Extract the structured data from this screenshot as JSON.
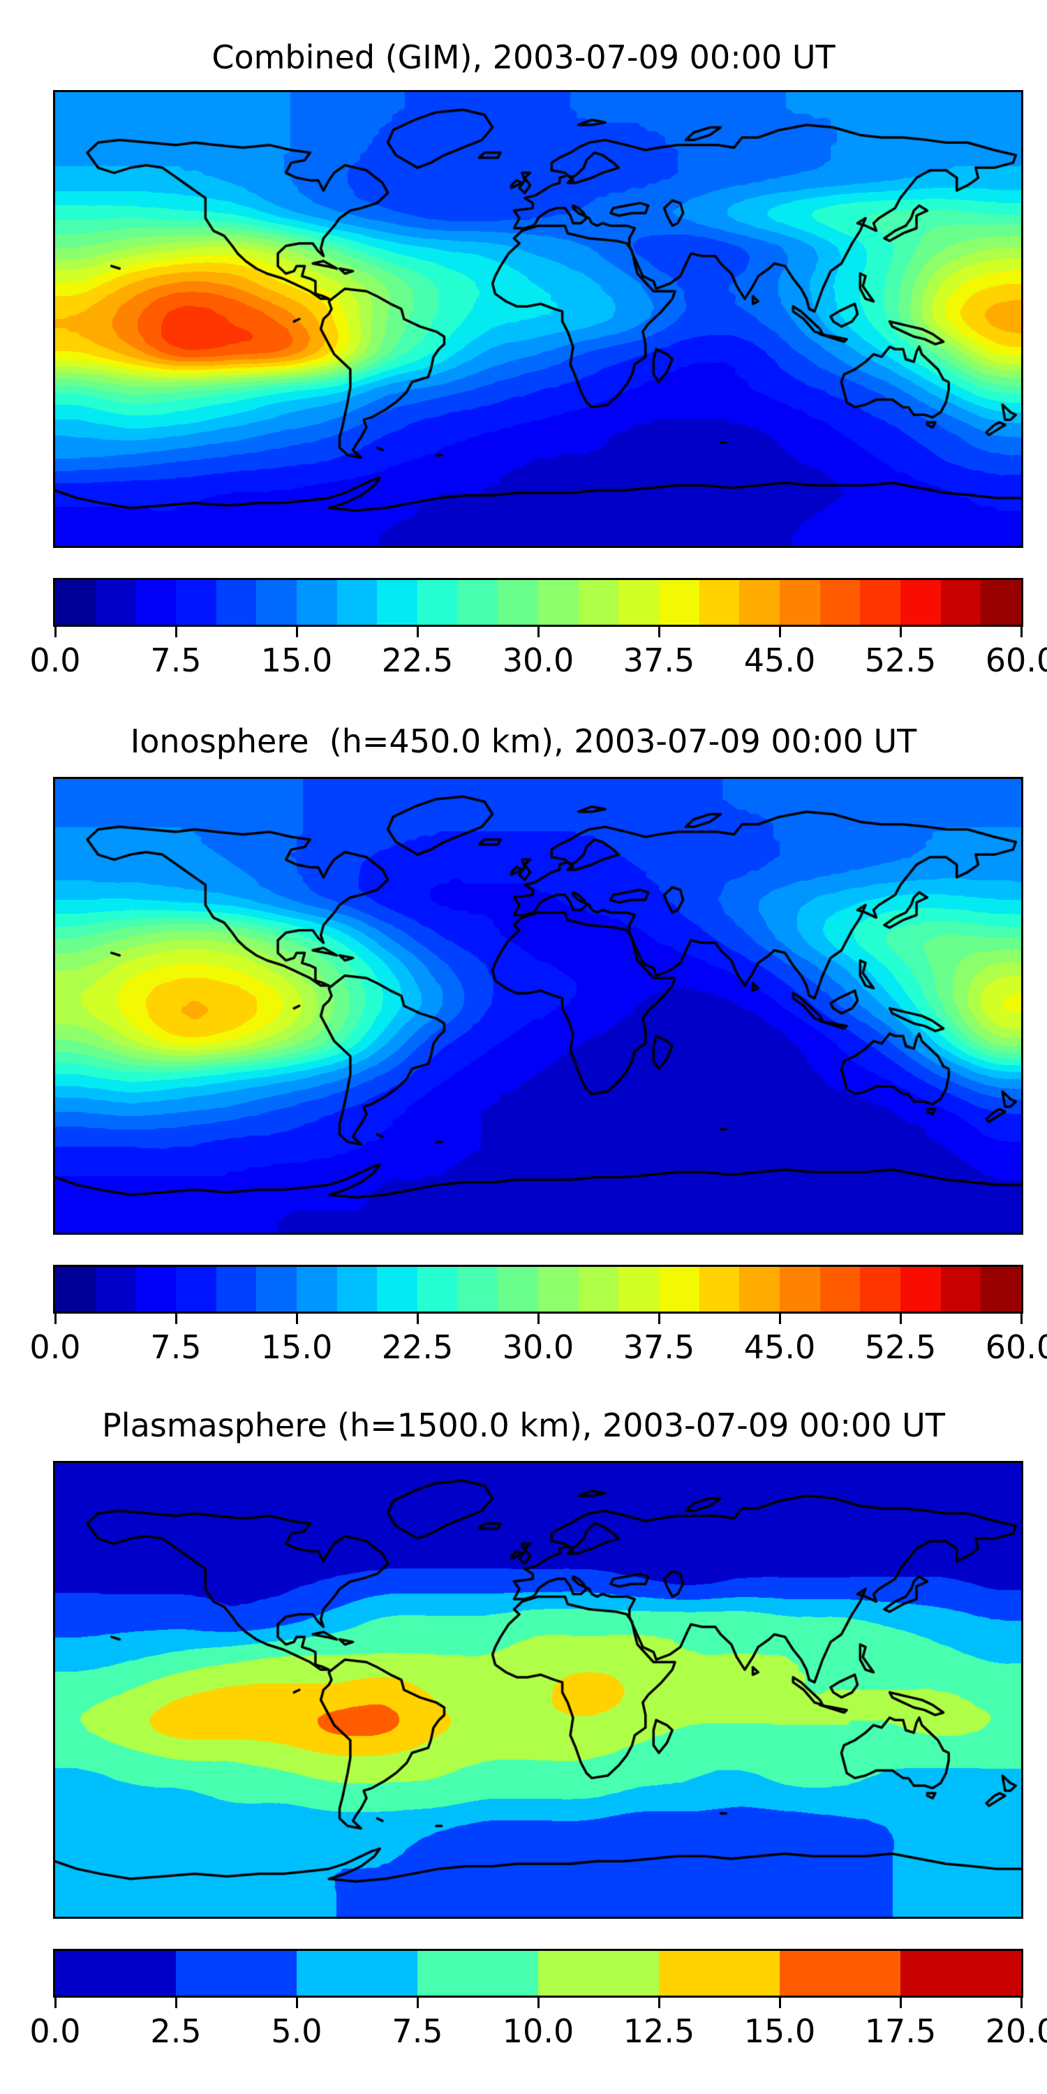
{
  "figure": {
    "background_color": "#ffffff",
    "description": "Three stacked global maps of total electron content with jet colormap contour fills, black coastlines and horizontal discrete colorbars",
    "coastline_color": "#000000",
    "panel_count": 3
  },
  "chart_data": [
    {
      "type": "heatmap",
      "title": "Combined (GIM), 2003-07-09 00:00 UT",
      "projection": "equirectangular",
      "colormap": "jet",
      "levels": {
        "min": 0,
        "max": 60,
        "step": 2.5,
        "n_colors": 24
      },
      "colorbar": {
        "orientation": "horizontal",
        "tick_values": [
          0.0,
          7.5,
          15.0,
          22.5,
          30.0,
          37.5,
          45.0,
          52.5,
          60.0
        ],
        "tick_labels": [
          "0.0",
          "7.5",
          "15.0",
          "22.5",
          "30.0",
          "37.5",
          "45.0",
          "52.5",
          "60.0"
        ]
      },
      "grid": {
        "lons": [
          -180,
          -160,
          -140,
          -120,
          -100,
          -80,
          -60,
          -40,
          -20,
          0,
          20,
          40,
          60,
          80,
          100,
          120,
          140,
          160,
          180
        ],
        "lats": [
          90,
          75,
          60,
          45,
          30,
          15,
          0,
          -15,
          -30,
          -45,
          -60,
          -75,
          -90
        ],
        "values": [
          [
            16,
            16,
            16,
            15,
            15,
            14,
            13,
            12,
            12,
            12,
            13,
            13,
            14,
            14,
            15,
            15,
            16,
            16,
            16
          ],
          [
            17,
            17,
            17,
            16,
            15,
            14,
            12,
            11,
            11,
            11,
            12,
            12,
            13,
            14,
            14,
            15,
            16,
            17,
            17
          ],
          [
            18,
            18,
            18,
            17,
            15,
            13,
            11,
            11,
            11,
            11,
            12,
            12,
            13,
            14,
            15,
            16,
            17,
            18,
            18
          ],
          [
            24,
            24,
            23,
            22,
            18,
            15,
            13,
            11,
            11,
            12,
            13,
            14,
            16,
            19,
            22,
            25,
            26,
            26,
            25
          ],
          [
            30,
            33,
            35,
            36,
            33,
            27,
            22,
            20,
            19,
            17,
            15,
            12,
            10,
            12,
            15,
            20,
            25,
            30,
            33
          ],
          [
            38,
            43,
            46,
            45,
            40,
            36,
            30,
            25,
            22,
            20,
            18,
            15,
            12,
            13,
            16,
            21,
            26,
            36,
            40
          ],
          [
            43,
            47,
            52,
            50,
            47,
            40,
            30,
            25,
            21,
            20,
            19,
            16,
            12,
            12,
            15,
            20,
            26,
            38,
            44
          ],
          [
            40,
            44,
            50,
            49,
            48,
            40,
            28,
            22,
            17,
            15,
            12,
            10,
            8,
            8,
            12,
            16,
            21,
            29,
            38
          ],
          [
            26,
            29,
            28,
            26,
            23,
            21,
            16,
            14,
            12,
            10,
            9,
            7,
            6,
            7,
            9,
            11,
            14,
            20,
            26
          ],
          [
            19,
            21,
            20,
            18,
            16,
            14,
            11,
            9,
            8,
            7,
            6,
            5,
            5,
            5,
            6,
            8,
            10,
            13,
            17
          ],
          [
            15,
            14,
            13,
            12,
            11,
            10,
            8,
            7,
            6,
            5,
            5,
            4,
            4,
            4,
            5,
            6,
            8,
            10,
            12
          ],
          [
            8,
            8,
            8,
            7,
            7,
            6,
            6,
            5,
            5,
            4,
            4,
            4,
            4,
            4,
            4,
            5,
            6,
            7,
            8
          ],
          [
            7,
            7,
            7,
            6,
            6,
            6,
            5,
            5,
            5,
            5,
            4,
            4,
            4,
            5,
            5,
            6,
            6,
            7,
            7
          ]
        ]
      }
    },
    {
      "type": "heatmap",
      "title": "Ionosphere  (h=450.0 km), 2003-07-09 00:00 UT",
      "projection": "equirectangular",
      "colormap": "jet",
      "levels": {
        "min": 0,
        "max": 60,
        "step": 2.5,
        "n_colors": 24
      },
      "colorbar": {
        "orientation": "horizontal",
        "tick_values": [
          0.0,
          7.5,
          15.0,
          22.5,
          30.0,
          37.5,
          45.0,
          52.5,
          60.0
        ],
        "tick_labels": [
          "0.0",
          "7.5",
          "15.0",
          "22.5",
          "30.0",
          "37.5",
          "45.0",
          "52.5",
          "60.0"
        ]
      },
      "grid": {
        "lons": [
          -180,
          -160,
          -140,
          -120,
          -100,
          -80,
          -60,
          -40,
          -20,
          0,
          20,
          40,
          60,
          80,
          100,
          120,
          140,
          160,
          180
        ],
        "lats": [
          90,
          75,
          60,
          45,
          30,
          15,
          0,
          -15,
          -30,
          -45,
          -60,
          -75,
          -90
        ],
        "values": [
          [
            14,
            14,
            14,
            14,
            13,
            12,
            11,
            11,
            11,
            11,
            11,
            12,
            12,
            13,
            13,
            14,
            14,
            14,
            14
          ],
          [
            15,
            15,
            15,
            14,
            13,
            12,
            11,
            10,
            10,
            10,
            10,
            11,
            12,
            12,
            13,
            14,
            14,
            15,
            15
          ],
          [
            16,
            16,
            16,
            15,
            13,
            11,
            9,
            8,
            8,
            8,
            9,
            10,
            11,
            12,
            13,
            14,
            15,
            16,
            16
          ],
          [
            20,
            20,
            19,
            18,
            15,
            12,
            9,
            7,
            7,
            7,
            8,
            9,
            11,
            14,
            17,
            19,
            21,
            21,
            20
          ],
          [
            27,
            30,
            32,
            31,
            27,
            22,
            15,
            10,
            8,
            6,
            6,
            7,
            9,
            12,
            17,
            22,
            26,
            28,
            27
          ],
          [
            33,
            37,
            39,
            38,
            34,
            28,
            21,
            14,
            10,
            8,
            7,
            6,
            6,
            8,
            12,
            17,
            23,
            29,
            34
          ],
          [
            35,
            39,
            43,
            42,
            38,
            30,
            22,
            16,
            10,
            8,
            7,
            5,
            4,
            5,
            8,
            13,
            19,
            28,
            38
          ],
          [
            30,
            35,
            40,
            38,
            33,
            27,
            18,
            11,
            8,
            6,
            5,
            4,
            3,
            3,
            5,
            8,
            13,
            22,
            32
          ],
          [
            22,
            24,
            23,
            21,
            19,
            16,
            12,
            8,
            6,
            5,
            4,
            3,
            3,
            3,
            4,
            6,
            8,
            13,
            18
          ],
          [
            15,
            16,
            15,
            14,
            12,
            10,
            8,
            6,
            5,
            4,
            3,
            3,
            3,
            3,
            3,
            4,
            5,
            7,
            10
          ],
          [
            10,
            10,
            10,
            9,
            9,
            8,
            7,
            6,
            5,
            4,
            3,
            3,
            3,
            3,
            3,
            3,
            4,
            5,
            7
          ],
          [
            7,
            7,
            7,
            7,
            6,
            6,
            5,
            5,
            4,
            4,
            3,
            3,
            3,
            3,
            3,
            3,
            3,
            4,
            5
          ],
          [
            6,
            6,
            6,
            6,
            5,
            5,
            5,
            4,
            4,
            4,
            3,
            3,
            3,
            3,
            3,
            3,
            3,
            4,
            4
          ]
        ]
      }
    },
    {
      "type": "heatmap",
      "title": "Plasmasphere (h=1500.0 km), 2003-07-09 00:00 UT",
      "projection": "equirectangular",
      "colormap": "jet",
      "levels": {
        "min": 0,
        "max": 20,
        "step": 2.5,
        "n_colors": 8
      },
      "colorbar": {
        "orientation": "horizontal",
        "tick_values": [
          0.0,
          2.5,
          5.0,
          7.5,
          10.0,
          12.5,
          15.0,
          17.5,
          20.0
        ],
        "tick_labels": [
          "0.0",
          "2.5",
          "5.0",
          "7.5",
          "10.0",
          "12.5",
          "15.0",
          "17.5",
          "20.0"
        ]
      },
      "grid": {
        "lons": [
          -180,
          -160,
          -140,
          -120,
          -100,
          -80,
          -60,
          -40,
          -20,
          0,
          20,
          40,
          60,
          80,
          100,
          120,
          140,
          160,
          180
        ],
        "lats": [
          90,
          75,
          60,
          45,
          30,
          15,
          0,
          -15,
          -30,
          -45,
          -60,
          -75,
          -90
        ],
        "values": [
          [
            1,
            1,
            1,
            1,
            1,
            1,
            1,
            1,
            1,
            1,
            1,
            1,
            1,
            1,
            1,
            1,
            1,
            1,
            1
          ],
          [
            1,
            1,
            1,
            1,
            1,
            1,
            1,
            1,
            1,
            1,
            1,
            1,
            1,
            1,
            1,
            1,
            1,
            1,
            1
          ],
          [
            1,
            1,
            1,
            1,
            1,
            1,
            1,
            1,
            1,
            1,
            1,
            1,
            1,
            1,
            1,
            1,
            1,
            1,
            1
          ],
          [
            2,
            2,
            2,
            2,
            2,
            3,
            4,
            4,
            4,
            4,
            4,
            3,
            2,
            3,
            3,
            3,
            3,
            3,
            2
          ],
          [
            4,
            4,
            4,
            3,
            4,
            6,
            8,
            8,
            8,
            9,
            9,
            9,
            9,
            9,
            8,
            8,
            7,
            6,
            5
          ],
          [
            6,
            7,
            8,
            9,
            10,
            10,
            10,
            10,
            10,
            11,
            11,
            11,
            10,
            10,
            10,
            9,
            9,
            8,
            7
          ],
          [
            9,
            10,
            12,
            13,
            13,
            13,
            14,
            12,
            11,
            12,
            14,
            12,
            11,
            11,
            10,
            10,
            10,
            10,
            9
          ],
          [
            10,
            12,
            14,
            14,
            14,
            16,
            16,
            13,
            12,
            12,
            12,
            11,
            10,
            10,
            10,
            10,
            10,
            11,
            10
          ],
          [
            8,
            9,
            10,
            10,
            11,
            12,
            12,
            11,
            10,
            10,
            10,
            9,
            8,
            8,
            9,
            9,
            8,
            8,
            8
          ],
          [
            6,
            7,
            7,
            8,
            8,
            9,
            9,
            9,
            8,
            8,
            8,
            7,
            7,
            6,
            7,
            7,
            6,
            6,
            6
          ],
          [
            6,
            6,
            6,
            6,
            6,
            6,
            6,
            5,
            4,
            4,
            4,
            3,
            3,
            3,
            3,
            4,
            5,
            6,
            6
          ],
          [
            6,
            6,
            6,
            6,
            5,
            5,
            5,
            4,
            4,
            3,
            3,
            3,
            3,
            3,
            3,
            4,
            5,
            6,
            6
          ],
          [
            6,
            6,
            6,
            6,
            6,
            5,
            4,
            4,
            3,
            3,
            3,
            3,
            3,
            3,
            4,
            4,
            5,
            6,
            6
          ]
        ]
      }
    }
  ]
}
